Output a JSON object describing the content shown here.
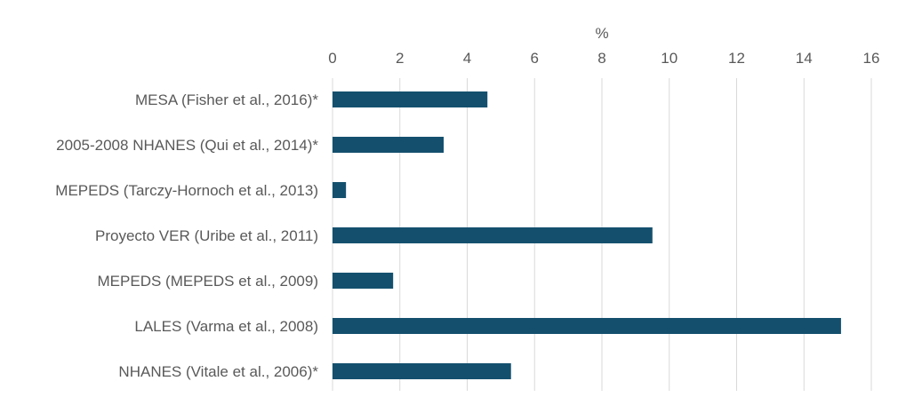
{
  "chart_data": {
    "type": "bar",
    "orientation": "horizontal",
    "title": "",
    "xlabel": "%",
    "ylabel": "",
    "xlim": [
      0,
      16
    ],
    "xticks": [
      0,
      2,
      4,
      6,
      8,
      10,
      12,
      14,
      16
    ],
    "x_axis_position": "top",
    "grid": true,
    "legend": "none",
    "bar_color": "#14506e",
    "categories": [
      "MESA (Fisher et al., 2016)*",
      "2005-2008 NHANES  (Qui et al., 2014)*",
      "MEPEDS (Tarczy-Hornoch et al., 2013)",
      "Proyecto VER (Uribe et al., 2011)",
      "MEPEDS (MEPEDS et al., 2009)",
      "LALES (Varma et al., 2008)",
      "NHANES  (Vitale et al., 2006)*"
    ],
    "values": [
      4.6,
      3.3,
      0.4,
      9.5,
      1.8,
      15.1,
      5.3
    ]
  }
}
